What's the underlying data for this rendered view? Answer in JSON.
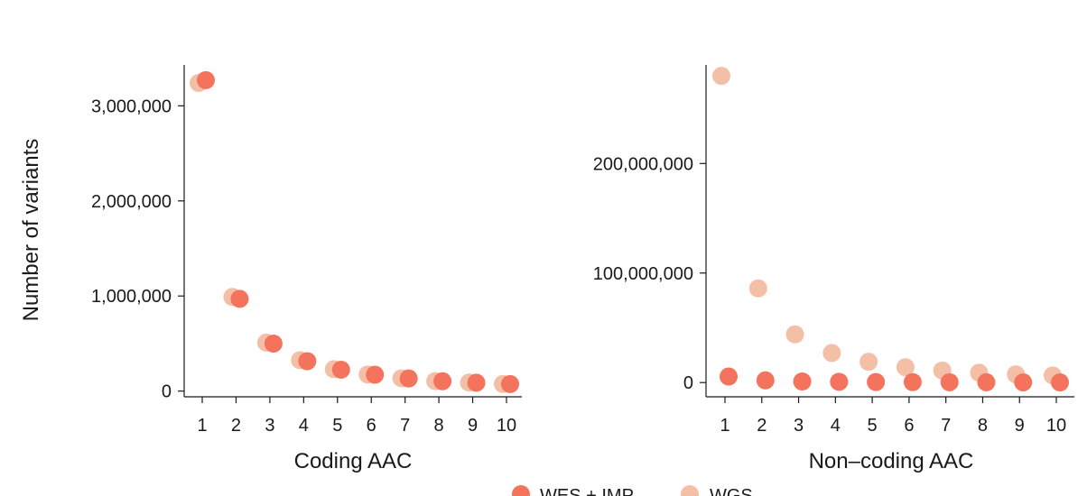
{
  "colors": {
    "wes_imp": "#f4735d",
    "wgs": "#f4bfa7",
    "axis": "#1a1a1a"
  },
  "legend": {
    "placement": "bottom-center",
    "items": [
      {
        "label": "WES + IMP",
        "color": "#f4735d"
      },
      {
        "label": "WGS",
        "color": "#f4bfa7"
      }
    ]
  },
  "chart_data": [
    {
      "type": "scatter",
      "xlabel": "Coding AAC",
      "ylabel": "Number of variants",
      "categories": [
        "1",
        "2",
        "3",
        "4",
        "5",
        "6",
        "7",
        "8",
        "9",
        "10"
      ],
      "ylim": [
        -60000,
        3430000
      ],
      "yticks": [
        0,
        1000000,
        2000000,
        3000000
      ],
      "ytick_labels": [
        "0",
        "1,000,000",
        "2,000,000",
        "3,000,000"
      ],
      "grid": false,
      "series": [
        {
          "name": "WGS",
          "color": "#f4bfa7",
          "values": [
            3240000,
            990000,
            510000,
            325000,
            230000,
            175000,
            135000,
            105000,
            90000,
            75000
          ]
        },
        {
          "name": "WES + IMP",
          "color": "#f4735d",
          "values": [
            3270000,
            970000,
            500000,
            315000,
            225000,
            172000,
            133000,
            104000,
            88000,
            74000
          ]
        }
      ]
    },
    {
      "type": "scatter",
      "xlabel": "Non–coding AAC",
      "ylabel": "",
      "categories": [
        "1",
        "2",
        "3",
        "4",
        "5",
        "6",
        "7",
        "8",
        "9",
        "10"
      ],
      "ylim": [
        -13000000,
        290000000
      ],
      "yticks": [
        0,
        100000000,
        200000000
      ],
      "ytick_labels": [
        "0",
        "100,000,000",
        "200,000,000"
      ],
      "grid": false,
      "series": [
        {
          "name": "WGS",
          "color": "#f4bfa7",
          "values": [
            280000000,
            86000000,
            44000000,
            27000000,
            19000000,
            14000000,
            11000000,
            9000000,
            7500000,
            6500000
          ]
        },
        {
          "name": "WES + IMP",
          "color": "#f4735d",
          "values": [
            5500000,
            2000000,
            1000000,
            700000,
            500000,
            400000,
            300000,
            250000,
            200000,
            150000
          ]
        }
      ]
    }
  ]
}
